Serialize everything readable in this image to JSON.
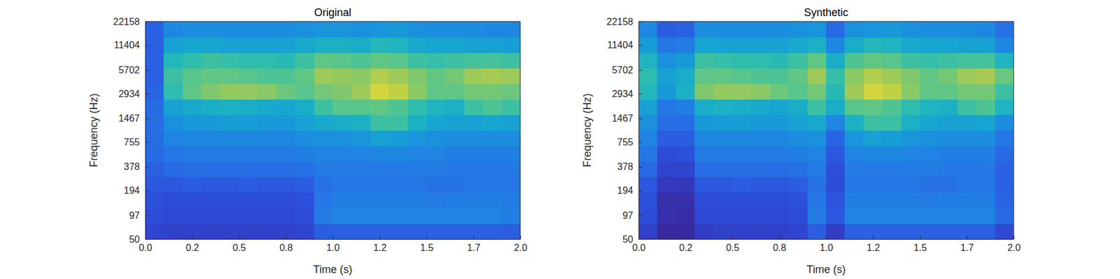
{
  "chart_data": [
    {
      "type": "heatmap",
      "title": "Original",
      "x_label": "Time (s)",
      "y_label": "Frequency (Hz)",
      "xlim": [
        0,
        2
      ],
      "ylim": [
        50,
        22158
      ],
      "log": "y",
      "xticks": [
        {
          "value": 0,
          "label": "0.0"
        },
        {
          "value": 0.25,
          "label": "0.2"
        },
        {
          "value": 0.5,
          "label": "0.5"
        },
        {
          "value": 0.75,
          "label": "0.8"
        },
        {
          "value": 1,
          "label": "1.0"
        },
        {
          "value": 1.25,
          "label": "1.2"
        },
        {
          "value": 1.5,
          "label": "1.5"
        },
        {
          "value": 1.75,
          "label": "1.7"
        },
        {
          "value": 2,
          "label": "2.0"
        }
      ],
      "yticks": [
        50,
        97,
        194,
        378,
        755,
        1467,
        2934,
        5702,
        11404,
        22158
      ],
      "zlim": [
        -110,
        -50
      ],
      "cells": [
        [
          -102,
          -103,
          -103,
          -103,
          -103,
          -103,
          -103,
          -103,
          -102,
          -96,
          -95,
          -95,
          -95,
          -95,
          -95,
          -95,
          -95,
          -95,
          -95,
          -96
        ],
        [
          -100,
          -101,
          -101,
          -101,
          -101,
          -101,
          -101,
          -101,
          -100,
          -89,
          -87,
          -87,
          -87,
          -87,
          -87,
          -87,
          -87,
          -87,
          -87,
          -88
        ],
        [
          -99,
          -100,
          -100,
          -100,
          -100,
          -100,
          -100,
          -100,
          -99,
          -90,
          -88,
          -88,
          -88,
          -88,
          -88,
          -89,
          -88,
          -88,
          -88,
          -89
        ],
        [
          -97,
          -97,
          -96,
          -97,
          -97,
          -96,
          -97,
          -97,
          -96,
          -91,
          -90,
          -90,
          -90,
          -90,
          -90,
          -91,
          -91,
          -90,
          -90,
          -90
        ],
        [
          -95,
          -93,
          -92,
          -92,
          -92,
          -92,
          -92,
          -92,
          -91,
          -89,
          -89,
          -89,
          -89,
          -89,
          -89,
          -89,
          -90,
          -90,
          -90,
          -90
        ],
        [
          -93,
          -90,
          -89,
          -89,
          -89,
          -89,
          -89,
          -89,
          -88,
          -87,
          -87,
          -87,
          -86,
          -86,
          -87,
          -87,
          -88,
          -88,
          -88,
          -88
        ],
        [
          -92,
          -87,
          -86,
          -86,
          -86,
          -86,
          -86,
          -86,
          -85,
          -84,
          -84,
          -83,
          -80,
          -81,
          -83,
          -84,
          -85,
          -85,
          -85,
          -85
        ],
        [
          -92,
          -84,
          -82,
          -82,
          -81,
          -81,
          -82,
          -82,
          -80,
          -78,
          -77,
          -76,
          -70,
          -70,
          -76,
          -79,
          -80,
          -80,
          -79,
          -80
        ],
        [
          -93,
          -80,
          -78,
          -77,
          -76,
          -77,
          -78,
          -79,
          -77,
          -70,
          -67,
          -67,
          -66,
          -68,
          -72,
          -75,
          -76,
          -70,
          -68,
          -70
        ],
        [
          -94,
          -72,
          -66,
          -63,
          -61,
          -61,
          -62,
          -65,
          -67,
          -64,
          -63,
          -60,
          -54,
          -56,
          -62,
          -66,
          -66,
          -64,
          -64,
          -65
        ],
        [
          -95,
          -70,
          -67,
          -66,
          -66,
          -67,
          -68,
          -68,
          -66,
          -60,
          -61,
          -62,
          -58,
          -60,
          -63,
          -66,
          -64,
          -60,
          -59,
          -60
        ],
        [
          -95,
          -74,
          -72,
          -70,
          -71,
          -72,
          -72,
          -73,
          -70,
          -66,
          -67,
          -68,
          -66,
          -67,
          -70,
          -71,
          -70,
          -69,
          -69,
          -70
        ],
        [
          -95,
          -80,
          -79,
          -79,
          -80,
          -80,
          -80,
          -80,
          -78,
          -76,
          -76,
          -77,
          -74,
          -75,
          -78,
          -79,
          -79,
          -80,
          -80,
          -81
        ],
        [
          -95,
          -86,
          -85,
          -85,
          -85,
          -85,
          -85,
          -85,
          -84,
          -83,
          -83,
          -84,
          -83,
          -82,
          -84,
          -85,
          -85,
          -85,
          -86,
          -86
        ]
      ]
    },
    {
      "type": "heatmap",
      "title": "Synthetic",
      "x_label": "Time (s)",
      "y_label": "Frequency (Hz)",
      "xlim": [
        0,
        2
      ],
      "ylim": [
        50,
        22158
      ],
      "log": "y",
      "xticks": [
        {
          "value": 0,
          "label": "0.0"
        },
        {
          "value": 0.25,
          "label": "0.2"
        },
        {
          "value": 0.5,
          "label": "0.5"
        },
        {
          "value": 0.75,
          "label": "0.8"
        },
        {
          "value": 1,
          "label": "1.0"
        },
        {
          "value": 1.25,
          "label": "1.2"
        },
        {
          "value": 1.5,
          "label": "1.5"
        },
        {
          "value": 1.75,
          "label": "1.7"
        },
        {
          "value": 2,
          "label": "2.0"
        }
      ],
      "yticks": [
        50,
        97,
        194,
        378,
        755,
        1467,
        2934,
        5702,
        11404,
        22158
      ],
      "zlim": [
        -110,
        -50
      ],
      "cells": [
        [
          -103,
          -110,
          -110,
          -104,
          -103,
          -103,
          -103,
          -103,
          -102,
          -96,
          -104,
          -95,
          -95,
          -95,
          -95,
          -95,
          -95,
          -95,
          -95,
          -101
        ],
        [
          -100,
          -108,
          -109,
          -101,
          -101,
          -101,
          -101,
          -101,
          -100,
          -89,
          -97,
          -87,
          -87,
          -87,
          -87,
          -87,
          -87,
          -87,
          -87,
          -93
        ],
        [
          -99,
          -108,
          -108,
          -100,
          -100,
          -100,
          -100,
          -100,
          -99,
          -90,
          -98,
          -88,
          -88,
          -88,
          -88,
          -89,
          -88,
          -88,
          -88,
          -94
        ],
        [
          -97,
          -105,
          -106,
          -97,
          -97,
          -96,
          -97,
          -97,
          -96,
          -91,
          -100,
          -90,
          -90,
          -90,
          -90,
          -91,
          -91,
          -90,
          -90,
          -95
        ],
        [
          -93,
          -102,
          -102,
          -92,
          -92,
          -92,
          -92,
          -92,
          -91,
          -89,
          -99,
          -89,
          -89,
          -89,
          -89,
          -89,
          -90,
          -90,
          -90,
          -95
        ],
        [
          -90,
          -100,
          -99,
          -89,
          -89,
          -89,
          -89,
          -89,
          -88,
          -87,
          -97,
          -87,
          -86,
          -86,
          -87,
          -87,
          -88,
          -88,
          -88,
          -93
        ],
        [
          -87,
          -96,
          -96,
          -86,
          -86,
          -86,
          -86,
          -86,
          -85,
          -84,
          -94,
          -83,
          -80,
          -81,
          -83,
          -84,
          -85,
          -85,
          -85,
          -90
        ],
        [
          -84,
          -92,
          -92,
          -82,
          -81,
          -81,
          -82,
          -82,
          -80,
          -78,
          -87,
          -76,
          -70,
          -70,
          -76,
          -79,
          -80,
          -80,
          -79,
          -85
        ],
        [
          -80,
          -90,
          -88,
          -77,
          -76,
          -77,
          -78,
          -79,
          -77,
          -70,
          -77,
          -67,
          -66,
          -68,
          -72,
          -75,
          -76,
          -70,
          -68,
          -75
        ],
        [
          -74,
          -82,
          -76,
          -63,
          -61,
          -61,
          -62,
          -65,
          -67,
          -64,
          -73,
          -60,
          -54,
          -56,
          -62,
          -66,
          -66,
          -64,
          -64,
          -70
        ],
        [
          -72,
          -80,
          -77,
          -66,
          -66,
          -67,
          -68,
          -68,
          -66,
          -60,
          -71,
          -62,
          -58,
          -60,
          -63,
          -66,
          -64,
          -60,
          -59,
          -65
        ],
        [
          -75,
          -84,
          -82,
          -70,
          -71,
          -72,
          -72,
          -73,
          -70,
          -66,
          -77,
          -68,
          -66,
          -67,
          -70,
          -71,
          -70,
          -69,
          -69,
          -75
        ],
        [
          -81,
          -90,
          -89,
          -79,
          -80,
          -80,
          -80,
          -80,
          -78,
          -76,
          -86,
          -77,
          -74,
          -75,
          -78,
          -79,
          -79,
          -80,
          -80,
          -86
        ],
        [
          -86,
          -96,
          -95,
          -85,
          -85,
          -85,
          -85,
          -85,
          -84,
          -83,
          -93,
          -84,
          -83,
          -82,
          -84,
          -85,
          -85,
          -85,
          -86,
          -91
        ]
      ]
    }
  ]
}
